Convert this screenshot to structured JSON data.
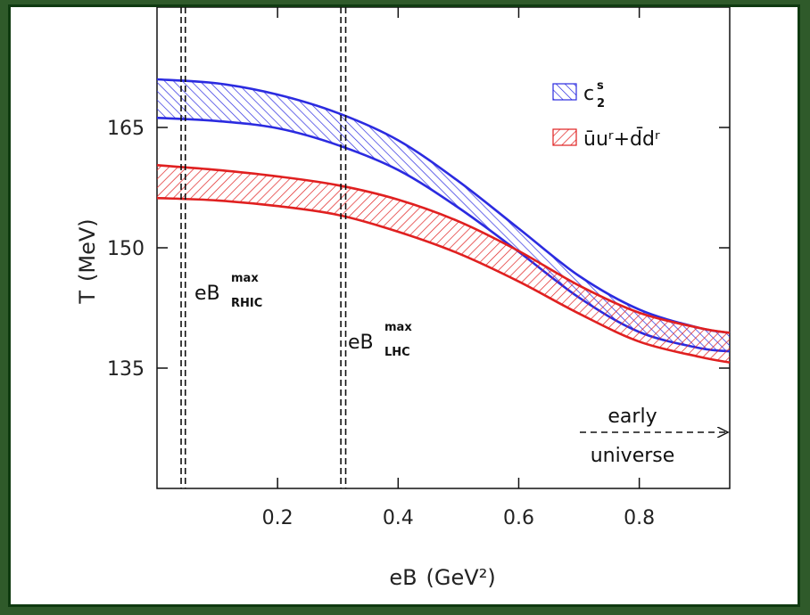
{
  "chart_data": {
    "type": "area",
    "xlabel": "eB",
    "xlabel_unit": "(GeV²)",
    "ylabel": "T",
    "ylabel_unit": "(MeV)",
    "xlim": [
      0,
      0.95
    ],
    "ylim": [
      120,
      180
    ],
    "x_ticks": [
      0.2,
      0.4,
      0.6,
      0.8
    ],
    "x_tick_labels": [
      "0.2",
      "0.4",
      "0.6",
      "0.8"
    ],
    "y_ticks": [
      135,
      150,
      165
    ],
    "y_tick_labels": [
      "135",
      "150",
      "165"
    ],
    "grid": false,
    "legend_position": "top-right",
    "series": [
      {
        "name_base": "c",
        "name_sup": "s",
        "name_sub": "2",
        "color": "#2b2be0",
        "x": [
          0,
          0.1,
          0.2,
          0.3,
          0.4,
          0.5,
          0.6,
          0.7,
          0.8,
          0.9,
          0.95
        ],
        "upper": [
          171,
          170.5,
          169.1,
          166.8,
          163.4,
          158.3,
          152.4,
          146.5,
          142.3,
          140,
          139.4
        ],
        "lower": [
          166.2,
          165.8,
          164.9,
          162.8,
          159.7,
          155.0,
          149.5,
          143.8,
          139.5,
          137.5,
          137.1
        ]
      },
      {
        "name_text": "ūuʳ+d̄dʳ",
        "color": "#e02020",
        "x": [
          0,
          0.1,
          0.2,
          0.3,
          0.4,
          0.5,
          0.6,
          0.7,
          0.8,
          0.9,
          0.95
        ],
        "upper": [
          160.3,
          159.7,
          158.9,
          157.8,
          156.0,
          153.3,
          149.6,
          145.3,
          141.9,
          140.0,
          139.4
        ],
        "lower": [
          156.2,
          155.9,
          155.2,
          154.1,
          152.0,
          149.3,
          145.8,
          141.8,
          138.3,
          136.4,
          135.7
        ]
      }
    ],
    "vertical_lines": [
      {
        "x": [
          0.04,
          0.047
        ],
        "label": "eB",
        "label_sup": "max",
        "label_sub": "RHIC"
      },
      {
        "x": [
          0.305,
          0.313
        ],
        "label": "eB",
        "label_sup": "max",
        "label_sub": "LHC"
      }
    ],
    "annotations": {
      "arrow_text_top": "early",
      "arrow_text_bottom": "universe"
    }
  }
}
